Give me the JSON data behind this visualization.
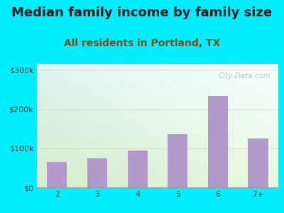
{
  "title": "Median family income by family size",
  "subtitle": "All residents in Portland, TX",
  "categories": [
    "2",
    "3",
    "4",
    "5",
    "6",
    "7+"
  ],
  "values": [
    65000,
    75000,
    95000,
    135000,
    233000,
    125000
  ],
  "bar_color": "#b399cc",
  "title_fontsize": 13,
  "subtitle_fontsize": 10,
  "yticks": [
    0,
    100000,
    200000,
    300000
  ],
  "ytick_labels": [
    "$0",
    "$100k",
    "$200k",
    "$300k"
  ],
  "ylim": [
    0,
    315000
  ],
  "bg_outer": "#00eeff",
  "bg_plot_topleft": "#dff3f0",
  "bg_plot_bottomleft": "#d4edcc",
  "bg_plot_topright": "#f0f8ff",
  "watermark": "City-Data.com",
  "title_color": "#1a1a1a",
  "subtitle_color": "#7a4a1a",
  "tick_color": "#4a3a2a",
  "grid_color": "#cccccc",
  "grid_alpha": 0.6
}
